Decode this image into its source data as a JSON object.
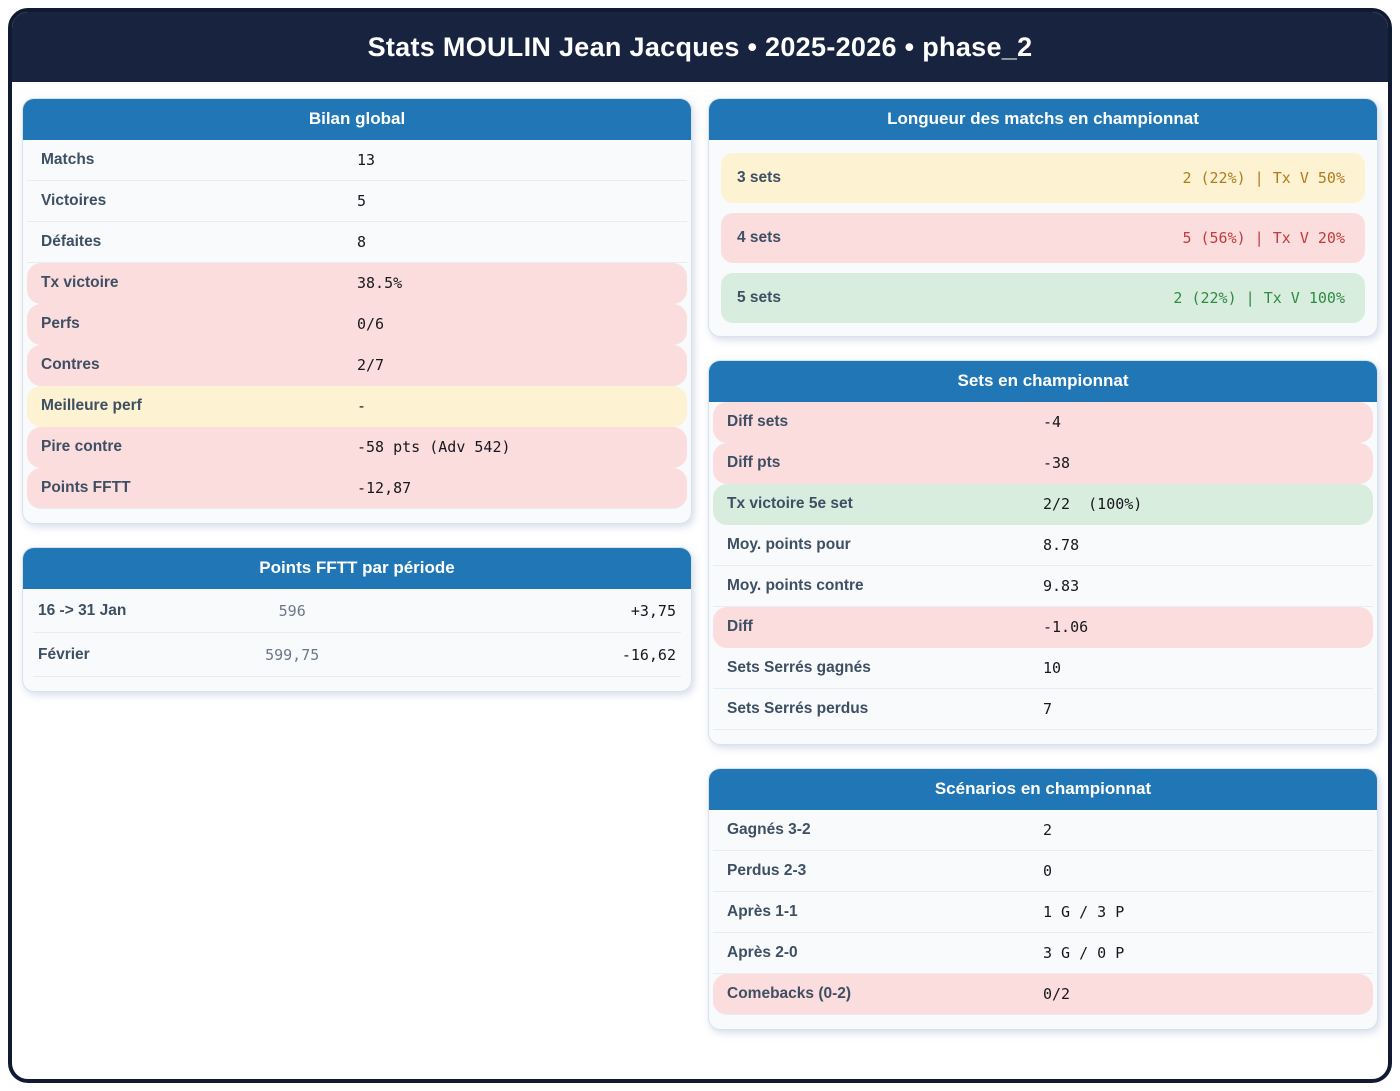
{
  "header": {
    "title": "Stats MOULIN Jean Jacques • 2025-2026 • phase_2"
  },
  "colors": {
    "frame_navy": "#17233f",
    "card_header_blue": "#2176b5",
    "bad_bg": "#fcdddd",
    "warn_bg": "#fdf2d1",
    "good_bg": "#d9edde",
    "bad_text": "#c23b3b",
    "warn_text": "#b17c1d",
    "good_text": "#2e8b44"
  },
  "cards": {
    "bilan": {
      "title": "Bilan global",
      "rows": [
        {
          "label": "Matchs",
          "value": "13",
          "tone": "plain"
        },
        {
          "label": "Victoires",
          "value": "5",
          "tone": "plain"
        },
        {
          "label": "Défaites",
          "value": "8",
          "tone": "plain"
        },
        {
          "label": "Tx victoire",
          "value": "38.5%",
          "tone": "bad"
        },
        {
          "label": "Perfs",
          "value": "0/6",
          "tone": "bad"
        },
        {
          "label": "Contres",
          "value": "2/7",
          "tone": "bad"
        },
        {
          "label": "Meilleure perf",
          "value": "-",
          "tone": "warn"
        },
        {
          "label": "Pire contre",
          "value": "-58 pts (Adv 542)",
          "tone": "bad"
        },
        {
          "label": "Points FFTT",
          "value": "-12,87",
          "tone": "bad"
        }
      ]
    },
    "fftt_periodes": {
      "title": "Points FFTT par période",
      "rows": [
        {
          "label": "16 -> 31 Jan",
          "points": "596",
          "delta": "+3,75"
        },
        {
          "label": "Février",
          "points": "599,75",
          "delta": "-16,62"
        }
      ]
    },
    "longueur": {
      "title": "Longueur des matchs en championnat",
      "rows": [
        {
          "label": "3 sets",
          "value": "2 (22%) | Tx V 50%",
          "tone": "warn"
        },
        {
          "label": "4 sets",
          "value": "5 (56%) | Tx V 20%",
          "tone": "bad"
        },
        {
          "label": "5 sets",
          "value": "2 (22%) | Tx V 100%",
          "tone": "good"
        }
      ]
    },
    "sets": {
      "title": "Sets en championnat",
      "rows": [
        {
          "label": "Diff sets",
          "value": "-4",
          "tone": "bad"
        },
        {
          "label": "Diff pts",
          "value": "-38",
          "tone": "bad"
        },
        {
          "label": "Tx victoire 5e set",
          "value": "2/2  (100%)",
          "tone": "good"
        },
        {
          "label": "Moy. points pour",
          "value": "8.78",
          "tone": "plain"
        },
        {
          "label": "Moy. points contre",
          "value": "9.83",
          "tone": "plain"
        },
        {
          "label": "Diff",
          "value": "-1.06",
          "tone": "bad"
        },
        {
          "label": "Sets Serrés gagnés",
          "value": "10",
          "tone": "plain"
        },
        {
          "label": "Sets Serrés perdus",
          "value": "7",
          "tone": "plain"
        }
      ]
    },
    "scenarios": {
      "title": "Scénarios en championnat",
      "rows": [
        {
          "label": "Gagnés 3-2",
          "value": "2",
          "tone": "plain"
        },
        {
          "label": "Perdus 2-3",
          "value": "0",
          "tone": "plain"
        },
        {
          "label": "Après 1-1",
          "value": "1 G / 3 P",
          "tone": "plain"
        },
        {
          "label": "Après 2-0",
          "value": "3 G / 0 P",
          "tone": "plain"
        },
        {
          "label": "Comebacks (0-2)",
          "value": "0/2",
          "tone": "bad"
        }
      ]
    }
  }
}
